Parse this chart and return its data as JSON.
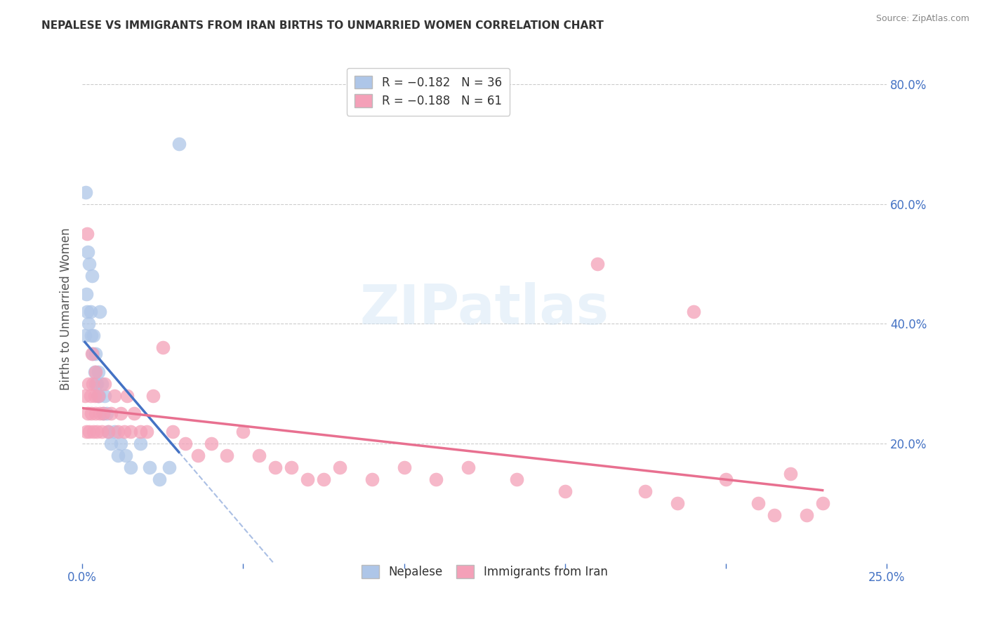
{
  "title": "NEPALESE VS IMMIGRANTS FROM IRAN BIRTHS TO UNMARRIED WOMEN CORRELATION CHART",
  "source": "Source: ZipAtlas.com",
  "ylabel": "Births to Unmarried Women",
  "nepalese_label": "Nepalese",
  "iran_label": "Immigrants from Iran",
  "nepalese_color": "#aec6e8",
  "iran_color": "#f4a0b8",
  "regression_blue_color": "#4472c4",
  "regression_pink_color": "#e87090",
  "watermark": "ZIPatlas",
  "background_color": "#ffffff",
  "x_min": 0.0,
  "x_max": 0.25,
  "y_min": 0.0,
  "y_max": 0.85,
  "nepalese_x": [
    0.0008,
    0.001,
    0.0012,
    0.0015,
    0.0018,
    0.002,
    0.0022,
    0.0025,
    0.0028,
    0.003,
    0.0032,
    0.0035,
    0.0038,
    0.004,
    0.0042,
    0.0045,
    0.0048,
    0.005,
    0.0052,
    0.0055,
    0.006,
    0.0065,
    0.007,
    0.0075,
    0.008,
    0.009,
    0.01,
    0.011,
    0.012,
    0.0135,
    0.015,
    0.018,
    0.021,
    0.024,
    0.027,
    0.03
  ],
  "nepalese_y": [
    0.38,
    0.62,
    0.45,
    0.42,
    0.52,
    0.4,
    0.5,
    0.42,
    0.38,
    0.48,
    0.35,
    0.38,
    0.32,
    0.3,
    0.35,
    0.3,
    0.28,
    0.32,
    0.28,
    0.42,
    0.3,
    0.25,
    0.28,
    0.25,
    0.22,
    0.2,
    0.22,
    0.18,
    0.2,
    0.18,
    0.16,
    0.2,
    0.16,
    0.14,
    0.16,
    0.7
  ],
  "iran_x": [
    0.0008,
    0.0012,
    0.0015,
    0.0018,
    0.002,
    0.0022,
    0.0025,
    0.0028,
    0.003,
    0.0032,
    0.0035,
    0.0038,
    0.004,
    0.0042,
    0.0045,
    0.005,
    0.0055,
    0.006,
    0.0065,
    0.007,
    0.008,
    0.009,
    0.01,
    0.011,
    0.012,
    0.013,
    0.014,
    0.015,
    0.016,
    0.018,
    0.02,
    0.022,
    0.025,
    0.028,
    0.032,
    0.036,
    0.04,
    0.045,
    0.05,
    0.055,
    0.06,
    0.065,
    0.07,
    0.075,
    0.08,
    0.09,
    0.1,
    0.11,
    0.12,
    0.135,
    0.15,
    0.16,
    0.175,
    0.185,
    0.19,
    0.2,
    0.21,
    0.215,
    0.22,
    0.225,
    0.23
  ],
  "iran_y": [
    0.28,
    0.22,
    0.55,
    0.25,
    0.3,
    0.22,
    0.28,
    0.25,
    0.35,
    0.3,
    0.22,
    0.28,
    0.32,
    0.25,
    0.22,
    0.28,
    0.25,
    0.22,
    0.25,
    0.3,
    0.22,
    0.25,
    0.28,
    0.22,
    0.25,
    0.22,
    0.28,
    0.22,
    0.25,
    0.22,
    0.22,
    0.28,
    0.36,
    0.22,
    0.2,
    0.18,
    0.2,
    0.18,
    0.22,
    0.18,
    0.16,
    0.16,
    0.14,
    0.14,
    0.16,
    0.14,
    0.16,
    0.14,
    0.16,
    0.14,
    0.12,
    0.5,
    0.12,
    0.1,
    0.42,
    0.14,
    0.1,
    0.08,
    0.15,
    0.08,
    0.1
  ]
}
